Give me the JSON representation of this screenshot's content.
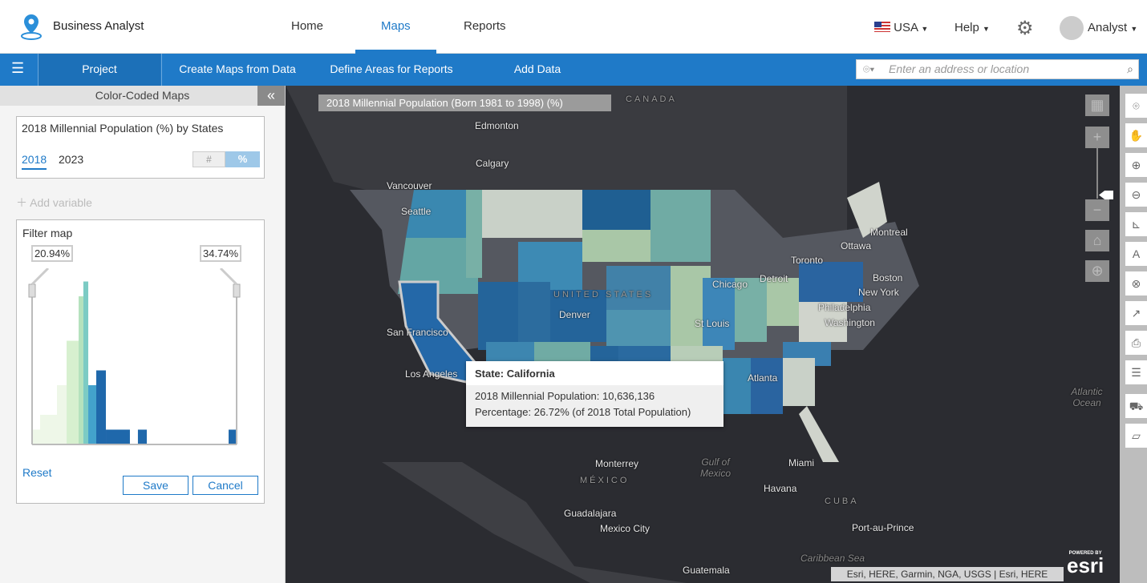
{
  "header": {
    "app_name": "Business Analyst",
    "nav": [
      "Home",
      "Maps",
      "Reports"
    ],
    "country": "USA",
    "help": "Help",
    "user": "Analyst"
  },
  "toolbar": {
    "project": "Project",
    "items": [
      "Create Maps from Data",
      "Define Areas for Reports",
      "Add Data"
    ],
    "search_placeholder": "Enter an address or location"
  },
  "panel": {
    "title": "Color-Coded Maps",
    "variable": "2018 Millennial Population (%) by States",
    "years": [
      "2018",
      "2023"
    ],
    "toggle": [
      "#",
      "%"
    ],
    "add_variable": "Add variable",
    "filter_title": "Filter map",
    "min": "20.94%",
    "max": "34.74%",
    "reset": "Reset",
    "save": "Save",
    "cancel": "Cancel"
  },
  "chart_data": {
    "type": "bar",
    "title": "Filter map histogram",
    "xlim": [
      20.94,
      34.74
    ],
    "bins": [
      {
        "from": 20.94,
        "to": 21.48,
        "count": 1,
        "color": "#eef7e8"
      },
      {
        "from": 21.48,
        "to": 22.62,
        "count": 2,
        "color": "#eef7e8"
      },
      {
        "from": 22.62,
        "to": 23.27,
        "count": 4,
        "color": "#eef7e8"
      },
      {
        "from": 23.27,
        "to": 24.08,
        "count": 7,
        "color": "#d7f0cf"
      },
      {
        "from": 24.08,
        "to": 24.4,
        "count": 10,
        "color": "#b5e2bd"
      },
      {
        "from": 24.4,
        "to": 24.73,
        "count": 11,
        "color": "#7ccbc4"
      },
      {
        "from": 24.73,
        "to": 25.27,
        "count": 4,
        "color": "#43a2cc"
      },
      {
        "from": 25.27,
        "to": 25.92,
        "count": 5,
        "color": "#1f68ab"
      },
      {
        "from": 25.92,
        "to": 27.54,
        "count": 1,
        "color": "#1f68ab"
      },
      {
        "from": 28.08,
        "to": 28.68,
        "count": 1,
        "color": "#1f68ab"
      },
      {
        "from": 34.2,
        "to": 34.74,
        "count": 1,
        "color": "#1f68ab"
      }
    ]
  },
  "map": {
    "legend_title": "2018 Millennial Population (Born 1981 to 1998) (%)",
    "labels": [
      "Edmonton",
      "Calgary",
      "Vancouver",
      "Seattle",
      "San Francisco",
      "Los Angeles",
      "Denver",
      "St Louis",
      "Chicago",
      "Detroit",
      "Toronto",
      "Ottawa",
      "Montreal",
      "Boston",
      "New York",
      "Philadelphia",
      "Washington",
      "Atlanta",
      "Miami",
      "Monterrey",
      "MÉXICO",
      "Guadalajara",
      "Mexico City",
      "Havana",
      "CUBA",
      "Port-au-Prince",
      "Guatemala",
      "Gulf of Mexico",
      "Caribbean Sea",
      "Atlantic Ocean",
      "CANADA",
      "UNITED STATES"
    ],
    "tooltip": {
      "title": "State: California",
      "line1": "2018 Millennial Population: 10,636,136",
      "line2": "Percentage: 26.72% (of 2018 Total Population)"
    },
    "attribution": "Esri, HERE, Garmin, NGA, USGS | Esri, HERE",
    "powered": "POWERED BY",
    "esri": "esri"
  }
}
